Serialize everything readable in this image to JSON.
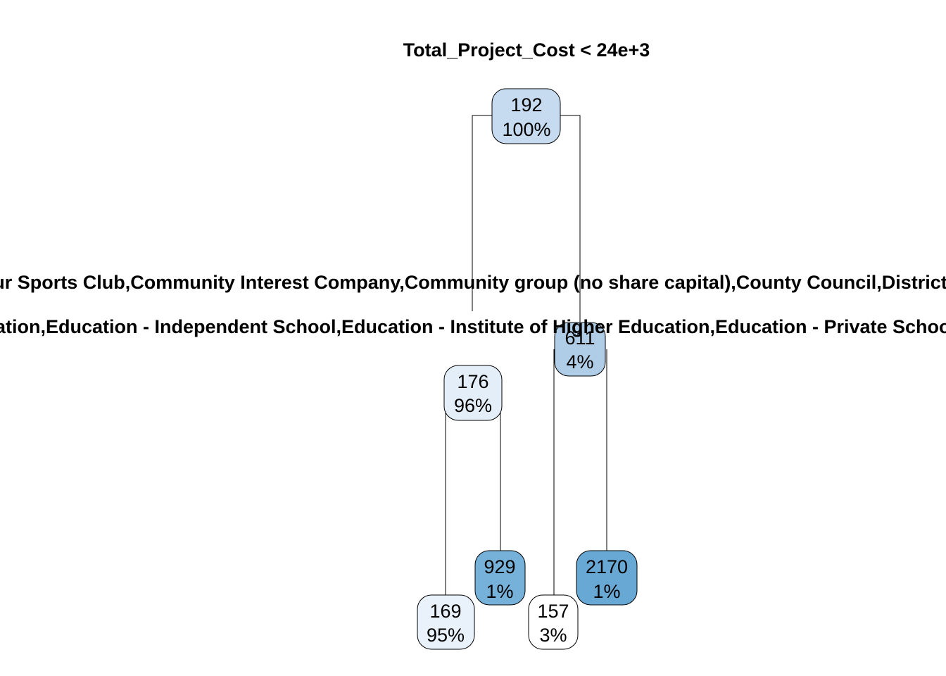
{
  "tree": {
    "root_split": "Total_Project_Cost < 24e+3",
    "left_split_line1": "Arts organisation,Charity (excluding sports charity),Community Amateur Sports Club,Community Interest Company,Community group (no share capital),County Council,District Council,Formally constituted club, association or trust,Local Authority",
    "left_split_line2": "Education - College of Further Education,Education - Independent School,Education - Institute of Higher Education,Education - Private School,Education - State Boarding School",
    "nodes": {
      "root": {
        "value": "192",
        "percent": "100%",
        "fill": "#c6dbef"
      },
      "n2": {
        "value": "176",
        "percent": "96%",
        "fill": "#e3eef9"
      },
      "n3": {
        "value": "611",
        "percent": "4%",
        "fill": "#afcde6"
      },
      "n4": {
        "value": "169",
        "percent": "95%",
        "fill": "#e9f2fb"
      },
      "n5": {
        "value": "929",
        "percent": "1%",
        "fill": "#75b1d9"
      },
      "n6": {
        "value": "157",
        "percent": "3%",
        "fill": "#ffffff"
      },
      "n7": {
        "value": "2170",
        "percent": "1%",
        "fill": "#68a8d5"
      }
    }
  }
}
